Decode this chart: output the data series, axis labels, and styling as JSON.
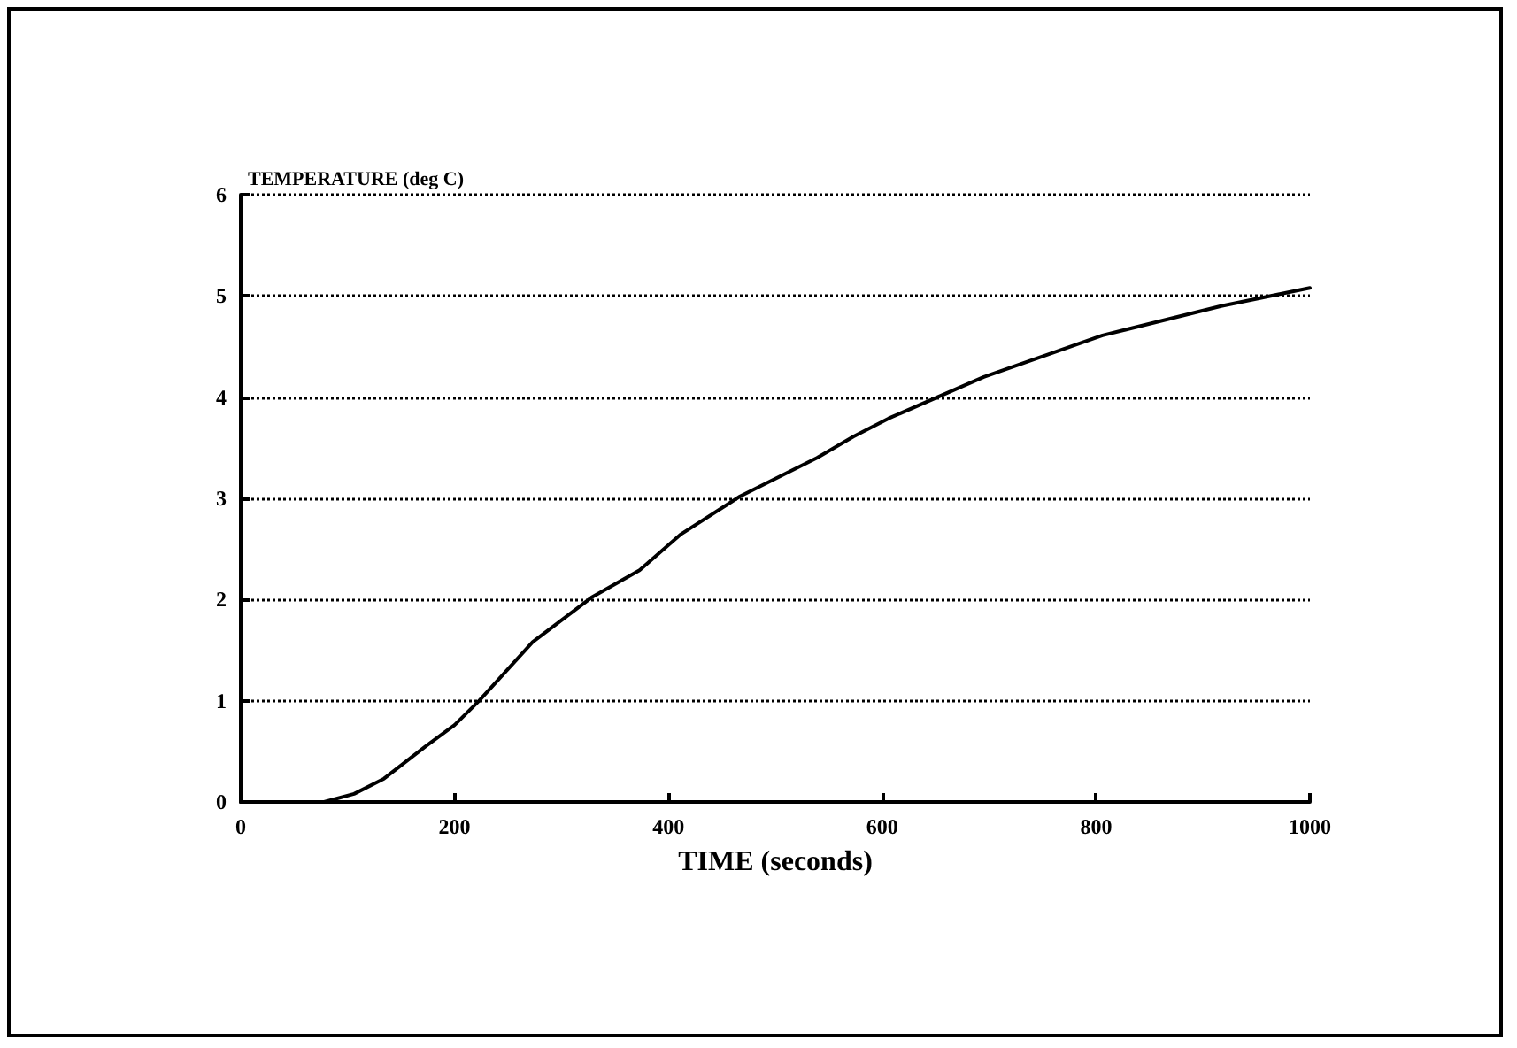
{
  "chart_data": {
    "type": "line",
    "xlabel": "TIME (seconds)",
    "ylabel": "TEMPERATURE (deg C)",
    "series": [
      {
        "color": "#000000",
        "x": [
          0,
          78,
          106,
          134,
          173,
          200,
          223,
          273,
          328,
          373,
          411,
          467,
          539,
          573,
          606,
          695,
          806,
          917,
          1000
        ],
        "values": [
          0,
          0,
          0.08,
          0.23,
          0.55,
          0.76,
          1.0,
          1.58,
          2.02,
          2.29,
          2.64,
          3.02,
          3.4,
          3.61,
          3.79,
          4.2,
          4.61,
          4.9,
          5.08
        ]
      }
    ],
    "xlim": [
      0,
      1000
    ],
    "xticks": [
      0,
      200,
      400,
      600,
      800,
      1000
    ],
    "ylim": [
      0,
      6
    ],
    "yticks": [
      0,
      1,
      2,
      3,
      4,
      5,
      6
    ],
    "grid": "y",
    "marker": "none",
    "line_style": "solid"
  }
}
